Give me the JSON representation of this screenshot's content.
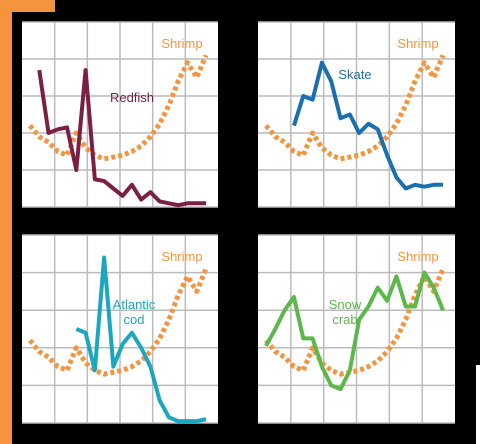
{
  "chart_data": [
    {
      "type": "line",
      "categories": [
        null,
        null,
        null,
        null,
        null,
        null,
        null,
        null,
        null,
        null,
        null,
        null,
        null,
        null,
        null,
        null,
        null,
        null,
        null,
        null
      ],
      "ylim": [
        0,
        100
      ],
      "yticks": [
        0,
        20,
        40,
        60,
        80,
        100
      ],
      "grid": true,
      "series": [
        {
          "name": "Redfish",
          "color": "#7b1f45",
          "values": [
            null,
            74,
            40,
            42,
            43,
            20,
            74,
            15,
            14,
            10,
            6,
            12,
            4,
            8,
            3,
            2,
            1,
            2,
            2,
            2
          ]
        },
        {
          "name": "Shrimp",
          "color": "#f5943e",
          "values": [
            44,
            38,
            35,
            30,
            28,
            40,
            32,
            28,
            26,
            27,
            28,
            30,
            33,
            38,
            45,
            55,
            68,
            78,
            70,
            82
          ]
        }
      ]
    },
    {
      "type": "line",
      "categories": [
        null,
        null,
        null,
        null,
        null,
        null,
        null,
        null,
        null,
        null,
        null,
        null,
        null,
        null,
        null,
        null,
        null,
        null,
        null,
        null
      ],
      "ylim": [
        0,
        100
      ],
      "yticks": [
        0,
        20,
        40,
        60,
        80,
        100
      ],
      "grid": true,
      "series": [
        {
          "name": "Skate",
          "color": "#1b6fae",
          "values": [
            null,
            null,
            null,
            44,
            60,
            58,
            78,
            68,
            48,
            50,
            40,
            45,
            42,
            28,
            16,
            10,
            12,
            11,
            12,
            12
          ]
        },
        {
          "name": "Shrimp",
          "color": "#f5943e",
          "values": [
            44,
            38,
            35,
            30,
            28,
            40,
            32,
            28,
            26,
            27,
            28,
            30,
            33,
            38,
            45,
            55,
            68,
            78,
            70,
            82
          ]
        }
      ]
    },
    {
      "type": "line",
      "categories": [
        null,
        null,
        null,
        null,
        null,
        null,
        null,
        null,
        null,
        null,
        null,
        null,
        null,
        null,
        null,
        null,
        null,
        null,
        null,
        null
      ],
      "ylim": [
        0,
        100
      ],
      "yticks": [
        0,
        20,
        40,
        60,
        80,
        100
      ],
      "grid": true,
      "series": [
        {
          "name": "Atlantic cod",
          "color": "#1aa7bf",
          "values": [
            null,
            null,
            null,
            null,
            null,
            50,
            48,
            28,
            88,
            30,
            42,
            48,
            40,
            30,
            12,
            3,
            1,
            1,
            1,
            2
          ]
        },
        {
          "name": "Shrimp",
          "color": "#f5943e",
          "values": [
            44,
            38,
            35,
            30,
            28,
            40,
            32,
            28,
            26,
            27,
            28,
            30,
            33,
            38,
            45,
            55,
            68,
            78,
            70,
            82
          ]
        }
      ]
    },
    {
      "type": "line",
      "categories": [
        null,
        null,
        null,
        null,
        null,
        null,
        null,
        null,
        null,
        null,
        null,
        null,
        null,
        null,
        null,
        null,
        null,
        null,
        null,
        null
      ],
      "ylim": [
        0,
        100
      ],
      "yticks": [
        0,
        20,
        40,
        60,
        80,
        100
      ],
      "grid": true,
      "series": [
        {
          "name": "Snow crab",
          "color": "#5cb84a",
          "values": [
            41,
            50,
            60,
            67,
            45,
            45,
            30,
            20,
            18,
            28,
            55,
            62,
            72,
            65,
            78,
            62,
            62,
            80,
            72,
            60
          ]
        },
        {
          "name": "Shrimp",
          "color": "#f5943e",
          "values": [
            44,
            38,
            35,
            30,
            28,
            40,
            32,
            28,
            26,
            27,
            28,
            30,
            33,
            38,
            45,
            55,
            68,
            78,
            70,
            82
          ]
        }
      ]
    }
  ]
}
